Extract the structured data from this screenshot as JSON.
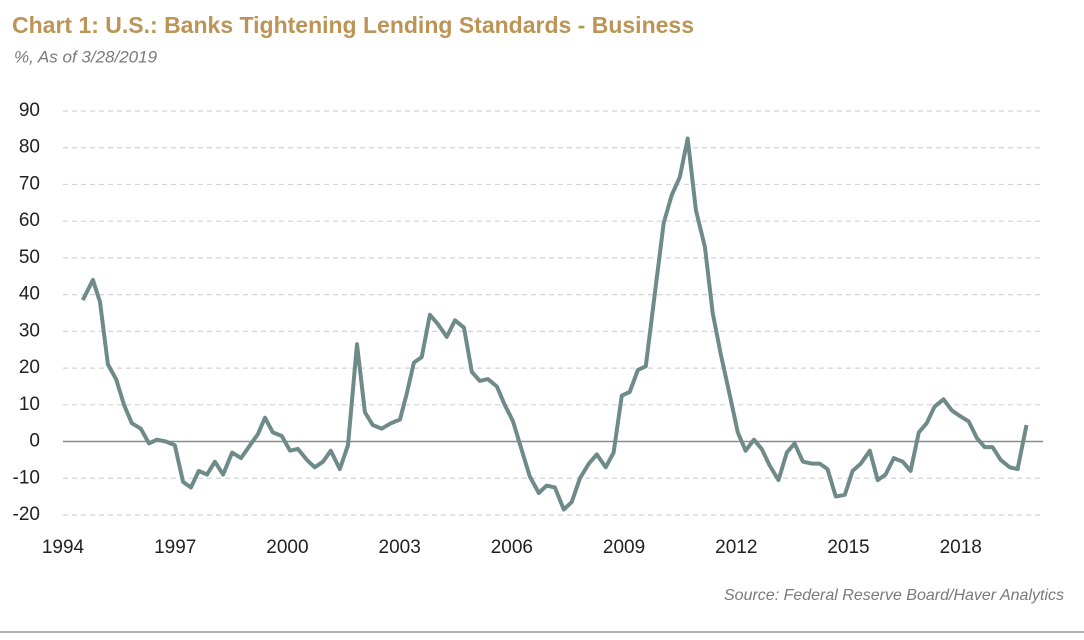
{
  "chart_data": {
    "type": "line",
    "title": "Chart 1: U.S.: Banks Tightening Lending Standards - Business",
    "subtitle": "%, As of 3/28/2019",
    "source": "Source: Federal Reserve Board/Haver Analytics",
    "x": [
      1994.53,
      1994.8,
      1994.99,
      1995.2,
      1995.42,
      1995.63,
      1995.84,
      1996.08,
      1996.3,
      1996.51,
      1996.75,
      1996.99,
      1997.21,
      1997.42,
      1997.63,
      1997.85,
      1998.06,
      1998.28,
      1998.52,
      1998.76,
      1999.0,
      1999.21,
      1999.4,
      1999.61,
      1999.85,
      2000.07,
      2000.28,
      2000.52,
      2000.73,
      2000.95,
      2001.16,
      2001.4,
      2001.62,
      2001.86,
      2002.07,
      2002.28,
      2002.52,
      2002.77,
      2003.01,
      2003.19,
      2003.38,
      2003.59,
      2003.81,
      2004.02,
      2004.26,
      2004.48,
      2004.72,
      2004.93,
      2005.14,
      2005.36,
      2005.6,
      2005.81,
      2006.03,
      2006.24,
      2006.48,
      2006.72,
      2006.93,
      2007.15,
      2007.39,
      2007.6,
      2007.82,
      2008.06,
      2008.27,
      2008.51,
      2008.72,
      2008.94,
      2009.15,
      2009.37,
      2009.58,
      2009.82,
      2010.06,
      2010.27,
      2010.49,
      2010.7,
      2010.92,
      2011.16,
      2011.37,
      2011.58,
      2011.82,
      2012.04,
      2012.25,
      2012.47,
      2012.68,
      2012.89,
      2013.13,
      2013.35,
      2013.56,
      2013.78,
      2014.02,
      2014.23,
      2014.44,
      2014.66,
      2014.9,
      2015.11,
      2015.33,
      2015.57,
      2015.78,
      2015.99,
      2016.21,
      2016.45,
      2016.66,
      2016.88,
      2017.09,
      2017.3,
      2017.54,
      2017.76,
      2017.97,
      2018.21,
      2018.43,
      2018.64,
      2018.85,
      2019.07,
      2019.31,
      2019.52,
      2019.76
    ],
    "series": [
      {
        "name": "Banks Tightening Lending Standards - Business",
        "color": "#6e8b89",
        "values": [
          38.5,
          44,
          38,
          21,
          17,
          10,
          5,
          3.5,
          -0.5,
          0.5,
          0,
          -1,
          -11,
          -12.5,
          -8,
          -9,
          -5.5,
          -9,
          -3,
          -4.5,
          -1,
          2,
          6.5,
          2.5,
          1.5,
          -2.5,
          -2,
          -5,
          -7,
          -5.5,
          -2.5,
          -7.5,
          -1,
          26.5,
          8,
          4.5,
          3.5,
          5,
          6,
          13,
          21.5,
          23,
          34.5,
          32,
          28.5,
          33,
          31,
          19,
          16.5,
          17,
          15,
          10,
          5.5,
          -1.5,
          -9.5,
          -14,
          -12,
          -12.5,
          -18.5,
          -16.5,
          -10,
          -6,
          -3.5,
          -7,
          -3,
          12.5,
          13.5,
          19.5,
          20.5,
          40,
          59.5,
          67,
          72,
          82.5,
          63,
          53,
          35,
          24,
          13,
          2.5,
          -2.5,
          0.5,
          -2,
          -6.5,
          -10.5,
          -3,
          -0.5,
          -5.5,
          -6,
          -6,
          -7.5,
          -15,
          -14.5,
          -8,
          -6,
          -2.5,
          -10.5,
          -9,
          -4.5,
          -5.5,
          -8,
          2.5,
          5,
          9.5,
          11.5,
          8.5,
          7,
          5.5,
          1,
          -1.5,
          -1.5,
          -5,
          -7,
          -7.5,
          4.5
        ]
      }
    ],
    "xlim": [
      1994,
      2020.2
    ],
    "xticks": [
      1994,
      1997,
      2000,
      2003,
      2006,
      2009,
      2012,
      2015,
      2018
    ],
    "ylim": [
      -20,
      90
    ],
    "yticks": [
      -20,
      -10,
      0,
      10,
      20,
      30,
      40,
      50,
      60,
      70,
      80,
      90
    ],
    "grid": true
  }
}
